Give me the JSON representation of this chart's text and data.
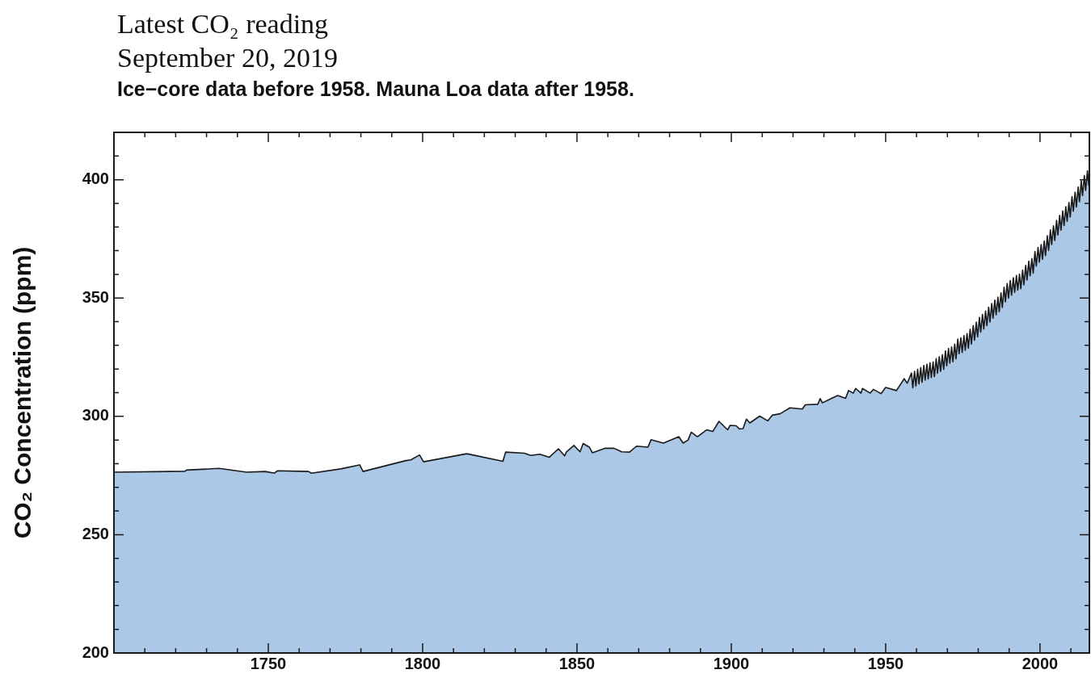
{
  "chart_data": {
    "type": "area",
    "title": "Latest CO₂ reading",
    "subtitle": "September 20, 2019",
    "annotations": [
      "Ice−core data before 1958. Mauna Loa data after 1958."
    ],
    "ylabel": "CO₂ Concentration (ppm)",
    "xlim": [
      1700,
      2016
    ],
    "ylim": [
      200,
      420
    ],
    "xticks": [
      {
        "value": 1710,
        "label": null
      },
      {
        "value": 1720,
        "label": null
      },
      {
        "value": 1730,
        "label": null
      },
      {
        "value": 1740,
        "label": null
      },
      1750,
      {
        "value": 1760,
        "label": null
      },
      {
        "value": 1770,
        "label": null
      },
      {
        "value": 1780,
        "label": null
      },
      {
        "value": 1790,
        "label": null
      },
      1800,
      {
        "value": 1810,
        "label": null
      },
      {
        "value": 1820,
        "label": null
      },
      {
        "value": 1830,
        "label": null
      },
      {
        "value": 1840,
        "label": null
      },
      1850,
      {
        "value": 1860,
        "label": null
      },
      {
        "value": 1870,
        "label": null
      },
      {
        "value": 1880,
        "label": null
      },
      {
        "value": 1890,
        "label": null
      },
      1900,
      {
        "value": 1910,
        "label": null
      },
      {
        "value": 1920,
        "label": null
      },
      {
        "value": 1930,
        "label": null
      },
      {
        "value": 1940,
        "label": null
      },
      1950,
      {
        "value": 1960,
        "label": null
      },
      {
        "value": 1970,
        "label": null
      },
      {
        "value": 1980,
        "label": null
      },
      {
        "value": 1990,
        "label": null
      },
      2000,
      {
        "value": 2010,
        "label": null
      }
    ],
    "yticks": [
      200,
      {
        "value": 210,
        "label": null
      },
      {
        "value": 220,
        "label": null
      },
      {
        "value": 230,
        "label": null
      },
      {
        "value": 240,
        "label": null
      },
      250,
      {
        "value": 260,
        "label": null
      },
      {
        "value": 270,
        "label": null
      },
      {
        "value": 280,
        "label": null
      },
      {
        "value": 290,
        "label": null
      },
      300,
      {
        "value": 310,
        "label": null
      },
      {
        "value": 320,
        "label": null
      },
      {
        "value": 330,
        "label": null
      },
      {
        "value": 340,
        "label": null
      },
      350,
      {
        "value": 360,
        "label": null
      },
      {
        "value": 370,
        "label": null
      },
      {
        "value": 380,
        "label": null
      },
      {
        "value": 390,
        "label": null
      },
      400,
      {
        "value": 410,
        "label": null
      }
    ],
    "series": [
      {
        "color": "#abc8e6",
        "x": [
          1700,
          1723,
          1723.5,
          1734,
          1743,
          1749,
          1752,
          1753,
          1763,
          1764,
          1773.5,
          1779.6,
          1780.7,
          1794.6,
          1796.2,
          1799,
          1800.3,
          1814.3,
          1826,
          1826.9,
          1833,
          1835,
          1838,
          1841,
          1844,
          1846,
          1846.6,
          1849,
          1851,
          1852,
          1854,
          1855,
          1859,
          1862,
          1864.5,
          1867,
          1869.3,
          1873,
          1874,
          1878,
          1883,
          1884.4,
          1886,
          1887,
          1889,
          1892,
          1894,
          1896,
          1898.8,
          1899.6,
          1901.6,
          1902.6,
          1903.8,
          1904.9,
          1906,
          1909.2,
          1911.8,
          1913.3,
          1915.8,
          1919,
          1923,
          1924,
          1928,
          1928.8,
          1929.5,
          1932.5,
          1934.5,
          1937,
          1938,
          1939.5,
          1940.3,
          1942,
          1942.5,
          1945,
          1946,
          1948.5,
          1950,
          1953.5,
          1956,
          1957,
          1958.37,
          1958.79,
          1959.37,
          1959.79,
          1960.37,
          1960.79,
          1961.37,
          1961.79,
          1962.37,
          1962.79,
          1963.37,
          1963.79,
          1964.37,
          1964.79,
          1965.37,
          1965.79,
          1966.37,
          1966.79,
          1967.37,
          1967.79,
          1968.37,
          1968.79,
          1969.37,
          1969.79,
          1970.37,
          1970.79,
          1971.37,
          1971.79,
          1972.37,
          1972.79,
          1973.37,
          1973.79,
          1974.37,
          1974.79,
          1975.37,
          1975.79,
          1976.37,
          1976.79,
          1977.37,
          1977.79,
          1978.37,
          1978.79,
          1979.37,
          1979.79,
          1980.37,
          1980.79,
          1981.37,
          1981.79,
          1982.37,
          1982.79,
          1983.37,
          1983.79,
          1984.37,
          1984.79,
          1985.37,
          1985.79,
          1986.37,
          1986.79,
          1987.37,
          1987.79,
          1988.37,
          1988.79,
          1989.37,
          1989.79,
          1990.37,
          1990.79,
          1991.37,
          1991.79,
          1992.37,
          1992.79,
          1993.37,
          1993.79,
          1994.37,
          1994.79,
          1995.37,
          1995.79,
          1996.37,
          1996.79,
          1997.37,
          1997.79,
          1998.37,
          1998.79,
          1999.37,
          1999.79,
          2000.37,
          2000.79,
          2001.37,
          2001.79,
          2002.37,
          2002.79,
          2003.37,
          2003.79,
          2004.37,
          2004.79,
          2005.37,
          2005.79,
          2006.37,
          2006.79,
          2007.37,
          2007.79,
          2008.37,
          2008.79,
          2009.37,
          2009.79,
          2010.37,
          2010.79,
          2011.37,
          2011.79,
          2012.37,
          2012.79,
          2013.37,
          2013.79,
          2014.37,
          2014.79,
          2015.37,
          2015.79,
          2016
        ],
        "values": [
          276.4,
          276.8,
          277.3,
          278,
          276.4,
          276.7,
          276,
          277,
          276.7,
          276,
          277.8,
          279.5,
          276.7,
          281.3,
          281.6,
          283.7,
          280.8,
          284.2,
          281,
          284.9,
          284.4,
          283.5,
          284,
          282.7,
          286.3,
          283.3,
          285,
          287.7,
          285,
          288.5,
          287,
          284.6,
          286.5,
          286.5,
          285,
          284.9,
          287.4,
          287,
          290.1,
          288.7,
          291.4,
          288.7,
          290,
          293.3,
          291.4,
          294.3,
          293.6,
          297.9,
          294.3,
          296.2,
          296,
          294.7,
          294.8,
          298.8,
          297.2,
          300.1,
          298.1,
          300.5,
          301.1,
          303.6,
          303.1,
          304.9,
          305.1,
          307.5,
          305.7,
          307.6,
          308.8,
          307.6,
          310.9,
          309.8,
          311.8,
          309.8,
          311.8,
          309.8,
          311.4,
          309.6,
          312.2,
          310.9,
          315.9,
          314,
          318.3,
          312.1,
          319,
          312.8,
          319.9,
          313.7,
          320.6,
          314.4,
          321.5,
          315.3,
          322,
          315.8,
          322.6,
          316.4,
          323,
          316.8,
          324.4,
          318.2,
          325.2,
          319,
          326,
          319.8,
          327.6,
          321.4,
          328.7,
          322.5,
          329.3,
          323.1,
          330.5,
          324.3,
          332.7,
          326.5,
          333.2,
          327,
          334.1,
          327.9,
          335,
          328.8,
          336.8,
          330.6,
          338.4,
          332.2,
          339.8,
          333.6,
          341.8,
          335.6,
          343.1,
          336.9,
          344.5,
          338.3,
          346.1,
          339.9,
          347.7,
          341.5,
          349.1,
          342.9,
          350.4,
          344.2,
          352.2,
          346,
          354.6,
          348.4,
          356.1,
          349.9,
          357.4,
          351.2,
          358.6,
          352.4,
          359.5,
          353.3,
          360.1,
          353.9,
          361.8,
          355.6,
          363.8,
          357.6,
          365.6,
          359.4,
          366.7,
          360.5,
          369.7,
          363.5,
          371.4,
          365.2,
          372.6,
          366.4,
          374.1,
          367.9,
          376.3,
          370.1,
          378.8,
          372.6,
          380.5,
          374.3,
          382.8,
          376.6,
          384.9,
          378.7,
          386.8,
          380.6,
          388.6,
          382.4,
          390.4,
          384.2,
          392.9,
          386.7,
          394.7,
          388.5,
          396.9,
          390.7,
          399.5,
          393.3,
          401.7,
          395.5,
          403.8,
          397.6,
          404.2
        ]
      }
    ]
  }
}
